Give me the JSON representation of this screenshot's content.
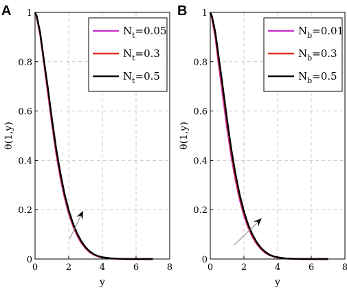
{
  "figure": {
    "colors": {
      "axis": "#000000",
      "grid": "#c8c8c8",
      "arrow": "#888888"
    }
  },
  "chart_data": [
    {
      "type": "line",
      "panel_label": "A",
      "xlabel": "y",
      "ylabel": "θ(1,y)",
      "xlim": [
        0,
        8
      ],
      "ylim": [
        0,
        1
      ],
      "xticks": [
        0,
        2,
        4,
        6,
        8
      ],
      "yticks": [
        0,
        0.2,
        0.4,
        0.6,
        0.8,
        1
      ],
      "xtick_labels": [
        "0",
        "2",
        "4",
        "6",
        "8"
      ],
      "ytick_labels": [
        "0",
        "0.2",
        "0.4",
        "0.6",
        "0.8",
        "1"
      ],
      "grid": true,
      "legend_position": "top-right",
      "series": [
        {
          "name": "Nt=0.05",
          "legend_main": "N",
          "legend_sub": "t",
          "legend_value": "=0.05",
          "color": "#cc33cc",
          "x": [
            0,
            0.1,
            0.3,
            0.5,
            0.75,
            1.0,
            1.25,
            1.5,
            1.75,
            2.0,
            2.25,
            2.5,
            2.75,
            3.0,
            3.25,
            3.5,
            3.75,
            4.0,
            4.5,
            5.0,
            5.5,
            6.0,
            6.5,
            7.0
          ],
          "y": [
            1,
            0.98,
            0.91,
            0.81,
            0.68,
            0.55,
            0.43,
            0.33,
            0.25,
            0.185,
            0.135,
            0.095,
            0.065,
            0.043,
            0.027,
            0.017,
            0.01,
            0.006,
            0.002,
            0.001,
            0,
            0,
            0,
            0
          ]
        },
        {
          "name": "Nt=0.3",
          "legend_main": "N",
          "legend_sub": "t",
          "legend_value": "=0.3",
          "color": "#e0301e",
          "x": [
            0,
            0.1,
            0.3,
            0.5,
            0.75,
            1.0,
            1.25,
            1.5,
            1.75,
            2.0,
            2.25,
            2.5,
            2.75,
            3.0,
            3.25,
            3.5,
            3.75,
            4.0,
            4.5,
            5.0,
            5.5,
            6.0,
            6.5,
            7.0
          ],
          "y": [
            1,
            0.98,
            0.915,
            0.815,
            0.69,
            0.56,
            0.44,
            0.34,
            0.258,
            0.192,
            0.14,
            0.1,
            0.069,
            0.046,
            0.029,
            0.018,
            0.011,
            0.007,
            0.002,
            0.001,
            0,
            0,
            0,
            0
          ]
        },
        {
          "name": "Nt=0.5",
          "legend_main": "N",
          "legend_sub": "t",
          "legend_value": "=0.5",
          "color": "#000000",
          "x": [
            0,
            0.1,
            0.3,
            0.5,
            0.75,
            1.0,
            1.25,
            1.5,
            1.75,
            2.0,
            2.25,
            2.5,
            2.75,
            3.0,
            3.25,
            3.5,
            3.75,
            4.0,
            4.5,
            5.0,
            5.5,
            6.0,
            6.5,
            7.0
          ],
          "y": [
            1,
            0.985,
            0.92,
            0.82,
            0.7,
            0.57,
            0.45,
            0.35,
            0.265,
            0.198,
            0.145,
            0.104,
            0.072,
            0.048,
            0.031,
            0.019,
            0.012,
            0.007,
            0.003,
            0.001,
            0,
            0,
            0,
            0
          ]
        }
      ],
      "annotation_arrow": {
        "from": [
          2.05,
          0.08
        ],
        "to": [
          2.85,
          0.195
        ]
      }
    },
    {
      "type": "line",
      "panel_label": "B",
      "xlabel": "y",
      "ylabel": "θ(1,y)",
      "xlim": [
        0,
        8
      ],
      "ylim": [
        0,
        1
      ],
      "xticks": [
        0,
        2,
        4,
        6,
        8
      ],
      "yticks": [
        0,
        0.2,
        0.4,
        0.6,
        0.8,
        1
      ],
      "xtick_labels": [
        "0",
        "2",
        "4",
        "6",
        "8"
      ],
      "ytick_labels": [
        "0",
        "0.2",
        "0.4",
        "0.6",
        "0.8",
        "1"
      ],
      "grid": true,
      "legend_position": "top-right",
      "series": [
        {
          "name": "Nb=0.01",
          "legend_main": "N",
          "legend_sub": "b",
          "legend_value": "=0.01",
          "color": "#cc33cc",
          "x": [
            0,
            0.1,
            0.3,
            0.5,
            0.75,
            1.0,
            1.25,
            1.5,
            1.75,
            2.0,
            2.25,
            2.5,
            2.75,
            3.0,
            3.25,
            3.5,
            3.75,
            4.0,
            4.5,
            5.0,
            5.5,
            6.0,
            6.5,
            7.0
          ],
          "y": [
            1,
            0.975,
            0.9,
            0.79,
            0.66,
            0.53,
            0.415,
            0.32,
            0.24,
            0.177,
            0.128,
            0.09,
            0.062,
            0.041,
            0.026,
            0.016,
            0.01,
            0.006,
            0.002,
            0.001,
            0,
            0,
            0,
            0
          ]
        },
        {
          "name": "Nb=0.3",
          "legend_main": "N",
          "legend_sub": "b",
          "legend_value": "=0.3",
          "color": "#e0301e",
          "x": [
            0,
            0.1,
            0.3,
            0.5,
            0.75,
            1.0,
            1.25,
            1.5,
            1.75,
            2.0,
            2.25,
            2.5,
            2.75,
            3.0,
            3.25,
            3.5,
            3.75,
            4.0,
            4.5,
            5.0,
            5.5,
            6.0,
            6.5,
            7.0
          ],
          "y": [
            1,
            0.98,
            0.91,
            0.805,
            0.68,
            0.55,
            0.43,
            0.33,
            0.25,
            0.185,
            0.134,
            0.095,
            0.065,
            0.043,
            0.028,
            0.017,
            0.011,
            0.006,
            0.002,
            0.001,
            0,
            0,
            0,
            0
          ]
        },
        {
          "name": "Nb=0.5",
          "legend_main": "N",
          "legend_sub": "b",
          "legend_value": "=0.5",
          "color": "#000000",
          "x": [
            0,
            0.1,
            0.3,
            0.5,
            0.75,
            1.0,
            1.25,
            1.5,
            1.75,
            2.0,
            2.25,
            2.5,
            2.75,
            3.0,
            3.25,
            3.5,
            3.75,
            4.0,
            4.5,
            5.0,
            5.5,
            6.0,
            6.5,
            7.0
          ],
          "y": [
            1,
            0.985,
            0.92,
            0.82,
            0.695,
            0.565,
            0.445,
            0.345,
            0.26,
            0.193,
            0.14,
            0.1,
            0.069,
            0.046,
            0.03,
            0.018,
            0.011,
            0.007,
            0.002,
            0.001,
            0,
            0,
            0,
            0
          ]
        }
      ],
      "annotation_arrow": {
        "from": [
          1.4,
          0.055
        ],
        "to": [
          3.05,
          0.165
        ]
      }
    }
  ]
}
